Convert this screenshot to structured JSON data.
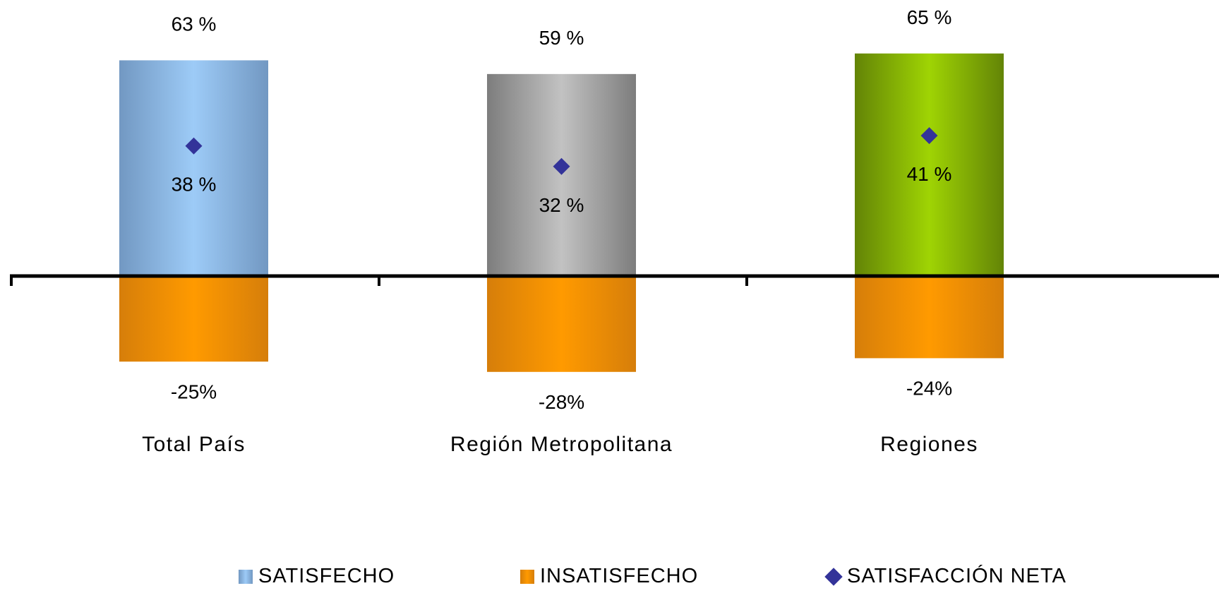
{
  "chart_data": {
    "type": "bar",
    "categories": [
      "Total País",
      "Región Metropolitana",
      "Regiones"
    ],
    "series": [
      {
        "name": "SATISFECHO",
        "kind": "bar",
        "values": [
          63,
          59,
          65
        ],
        "labels": [
          "63 %",
          "59 %",
          "65 %"
        ]
      },
      {
        "name": "INSATISFECHO",
        "kind": "bar",
        "values": [
          -25,
          -28,
          -24
        ],
        "labels": [
          "-25%",
          "-28%",
          "-24%"
        ]
      },
      {
        "name": "SATISFACCIÓN NETA",
        "kind": "marker",
        "values": [
          38,
          32,
          41
        ],
        "labels": [
          "38 %",
          "32 %",
          "41 %"
        ]
      }
    ],
    "ylim": [
      -28,
      65
    ],
    "title": "",
    "xlabel": "",
    "ylabel": "",
    "grid": false,
    "legend_position": "bottom"
  },
  "colors": {
    "satisfecho_bars": [
      {
        "edge": "#7298c2",
        "center": "#9dcbf7"
      },
      {
        "edge": "#7d7d7d",
        "center": "#c2c2c2"
      },
      {
        "edge": "#638406",
        "center": "#9fd404"
      }
    ],
    "insatisfecho_bar": {
      "edge": "#d67e0a",
      "center": "#ff9a00"
    },
    "marker": "#333399",
    "axis": "#000000"
  },
  "legend": {
    "items": [
      {
        "label": "SATISFECHO",
        "icon": "gradient-square-icon"
      },
      {
        "label": "INSATISFECHO",
        "icon": "gradient-square-icon"
      },
      {
        "label": "SATISFACCIÓN NETA",
        "icon": "diamond-icon"
      }
    ]
  }
}
